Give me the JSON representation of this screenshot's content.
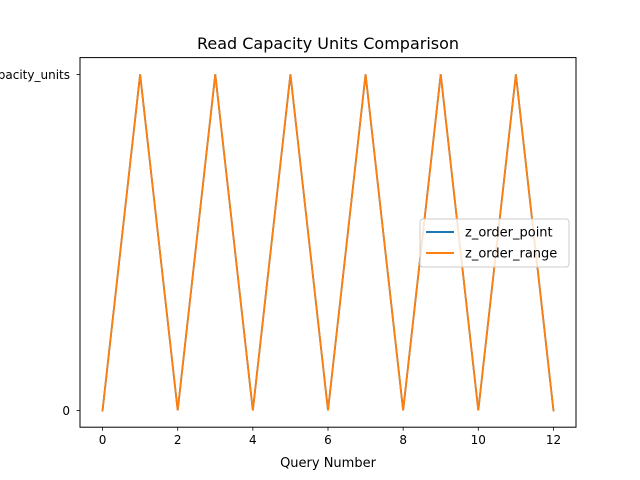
{
  "chart_data": {
    "type": "line",
    "title": "Read Capacity Units Comparison",
    "xlabel": "Query Number",
    "ylabel": "",
    "x": [
      0,
      1,
      2,
      3,
      4,
      5,
      6,
      7,
      8,
      9,
      10,
      11,
      12
    ],
    "x_ticks": [
      "0",
      "2",
      "4",
      "6",
      "8",
      "10",
      "12"
    ],
    "y_categories": [
      "0",
      "capacity_units"
    ],
    "series": [
      {
        "name": "z_order_point",
        "color": "#1f77b4",
        "values": [
          "0",
          "capacity_units",
          "0",
          "capacity_units",
          "0",
          "capacity_units",
          "0",
          "capacity_units",
          "0",
          "capacity_units",
          "0",
          "capacity_units",
          "0"
        ]
      },
      {
        "name": "z_order_range",
        "color": "#ff7f0e",
        "values": [
          "0",
          "capacity_units",
          "0",
          "capacity_units",
          "0",
          "capacity_units",
          "0",
          "capacity_units",
          "0",
          "capacity_units",
          "0",
          "capacity_units",
          "0"
        ]
      }
    ],
    "xlim": [
      -0.6,
      12.6
    ],
    "grid": false,
    "legend_position": "center-right"
  }
}
